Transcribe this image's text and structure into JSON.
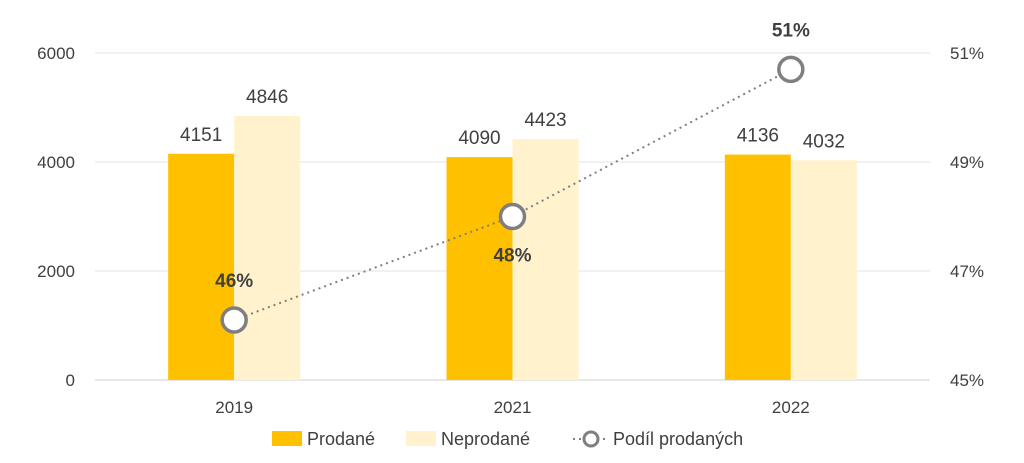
{
  "chart_data": {
    "type": "bar",
    "categories": [
      "2019",
      "2021",
      "2022"
    ],
    "series": [
      {
        "name": "Prodané",
        "values": [
          4151,
          4090,
          4136
        ],
        "color": "#FFC000",
        "kind": "bar",
        "axis": "left"
      },
      {
        "name": "Neprodané",
        "values": [
          4846,
          4423,
          4032
        ],
        "color": "#FFF2CC",
        "kind": "bar",
        "axis": "left"
      },
      {
        "name": "Podíl prodaných",
        "values": [
          46.1,
          48.0,
          50.7
        ],
        "labels": [
          "46%",
          "48%",
          "51%"
        ],
        "color": "#7F7F7F",
        "kind": "line",
        "axis": "right"
      }
    ],
    "y_left": {
      "ylim": [
        0,
        6000
      ],
      "ticks": [
        "0",
        "2000",
        "4000",
        "6000"
      ]
    },
    "y_right": {
      "ylim": [
        45,
        51
      ],
      "ticks": [
        "45%",
        "47%",
        "49%",
        "51%"
      ]
    },
    "grid": true,
    "legend": "bottom"
  }
}
